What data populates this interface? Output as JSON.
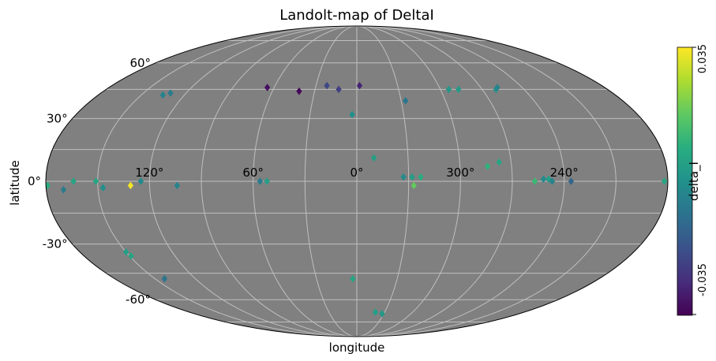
{
  "chart_data": {
    "type": "scatter",
    "projection": "mollweide",
    "title": "Landolt-map of DeltaI",
    "xlabel": "longitude",
    "ylabel": "latitude",
    "x_tick_labels": [
      "120°",
      "60°",
      "0°",
      "300°",
      "240°"
    ],
    "x_tick_values": [
      120,
      60,
      0,
      300,
      240
    ],
    "y_tick_labels": [
      "60°",
      "30°",
      "0°",
      "-30°",
      "-60°"
    ],
    "y_tick_values": [
      60,
      30,
      0,
      -30,
      -60
    ],
    "grid": true,
    "background_color": "#808080",
    "grid_color": "#bfbfbf",
    "colorbar": {
      "label": "delta_I",
      "min": -0.035,
      "max": 0.035,
      "min_label": "-0.035",
      "max_label": "0.035",
      "colormap": "viridis",
      "position": "right"
    },
    "points": [
      {
        "lon": 65,
        "lat": 46,
        "value": -0.032
      },
      {
        "lon": 41,
        "lat": 44,
        "value": -0.034
      },
      {
        "lon": 22,
        "lat": 47,
        "value": -0.02
      },
      {
        "lon": 13,
        "lat": 45,
        "value": -0.022
      },
      {
        "lon": 358,
        "lat": 47,
        "value": -0.028
      },
      {
        "lon": 3,
        "lat": 32,
        "value": 0.0
      },
      {
        "lon": 327,
        "lat": 39,
        "value": -0.008
      },
      {
        "lon": 294,
        "lat": 45,
        "value": 0.002
      },
      {
        "lon": 287,
        "lat": 45,
        "value": 0.003
      },
      {
        "lon": 260,
        "lat": 45,
        "value": 0.0
      },
      {
        "lon": 258,
        "lat": 46,
        "value": -0.004
      },
      {
        "lon": 135,
        "lat": 42,
        "value": -0.004
      },
      {
        "lon": 131,
        "lat": 43,
        "value": -0.006
      },
      {
        "lon": 350,
        "lat": 11,
        "value": 0.004
      },
      {
        "lon": 333,
        "lat": 2,
        "value": -0.002
      },
      {
        "lon": 328,
        "lat": 2,
        "value": 0.004
      },
      {
        "lon": 323,
        "lat": 2,
        "value": 0.008
      },
      {
        "lon": 327,
        "lat": -2,
        "value": 0.018
      },
      {
        "lon": 284,
        "lat": 7,
        "value": 0.01
      },
      {
        "lon": 277,
        "lat": 9,
        "value": 0.006
      },
      {
        "lon": 257,
        "lat": 0,
        "value": 0.012
      },
      {
        "lon": 252,
        "lat": 1,
        "value": -0.002
      },
      {
        "lon": 249,
        "lat": 1,
        "value": 0.004
      },
      {
        "lon": 247,
        "lat": 0,
        "value": -0.004
      },
      {
        "lon": 236,
        "lat": 0,
        "value": -0.012
      },
      {
        "lon": 182,
        "lat": 0,
        "value": 0.006
      },
      {
        "lon": 179,
        "lat": -2,
        "value": 0.008
      },
      {
        "lon": 56,
        "lat": 0,
        "value": -0.006
      },
      {
        "lon": 52,
        "lat": 0,
        "value": 0.004
      },
      {
        "lon": 104,
        "lat": -2,
        "value": -0.004
      },
      {
        "lon": 131,
        "lat": -2,
        "value": 0.034
      },
      {
        "lon": 125,
        "lat": 0,
        "value": -0.002
      },
      {
        "lon": 151,
        "lat": 0,
        "value": 0.006
      },
      {
        "lon": 147,
        "lat": -3,
        "value": 0.0
      },
      {
        "lon": 164,
        "lat": 0,
        "value": 0.006
      },
      {
        "lon": 170,
        "lat": -4,
        "value": -0.006
      },
      {
        "lon": 150,
        "lat": -34,
        "value": 0.004
      },
      {
        "lon": 149,
        "lat": -36,
        "value": 0.006
      },
      {
        "lon": 143,
        "lat": -48,
        "value": -0.008
      },
      {
        "lon": 3,
        "lat": -48,
        "value": 0.006
      },
      {
        "lon": 340,
        "lat": -68,
        "value": 0.004
      },
      {
        "lon": 332,
        "lat": -69,
        "value": 0.002
      }
    ]
  }
}
